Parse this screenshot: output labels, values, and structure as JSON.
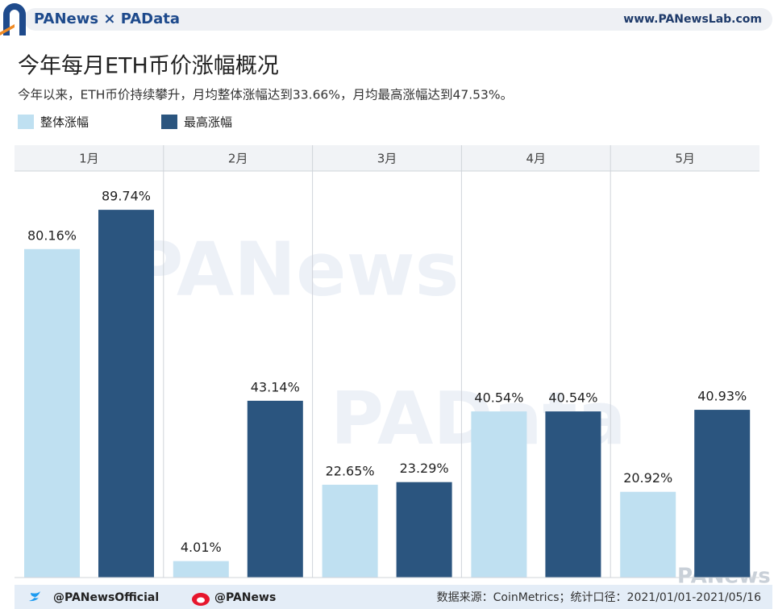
{
  "header": {
    "brand": "PANews × PAData",
    "website": "www.PANewsLab.com"
  },
  "chart_data": {
    "type": "bar",
    "title": "今年每月ETH币价涨幅概况",
    "subtitle": "今年以来，ETH币价持续攀升，月均整体涨幅达到33.66%，月均最高涨幅达到47.53%。",
    "categories": [
      "1月",
      "2月",
      "3月",
      "4月",
      "5月"
    ],
    "series": [
      {
        "name": "整体涨幅",
        "color": "#bfe0f1",
        "values": [
          80.16,
          4.01,
          22.65,
          40.54,
          20.92
        ],
        "value_labels": [
          "80.16%",
          "4.01%",
          "22.65%",
          "40.54%",
          "20.92%"
        ]
      },
      {
        "name": "最高涨幅",
        "color": "#2b557f",
        "values": [
          89.74,
          43.14,
          23.29,
          40.54,
          40.93
        ],
        "value_labels": [
          "89.74%",
          "43.14%",
          "23.29%",
          "40.54%",
          "40.93%"
        ]
      }
    ],
    "watermarks": [
      "PANews",
      "PAData",
      "PANews"
    ]
  },
  "footer": {
    "twitter": "@PANewsOfficial",
    "weibo": "@PANews",
    "source": "数据来源：CoinMetrics；统计口径：2021/01/01-2021/05/16"
  }
}
